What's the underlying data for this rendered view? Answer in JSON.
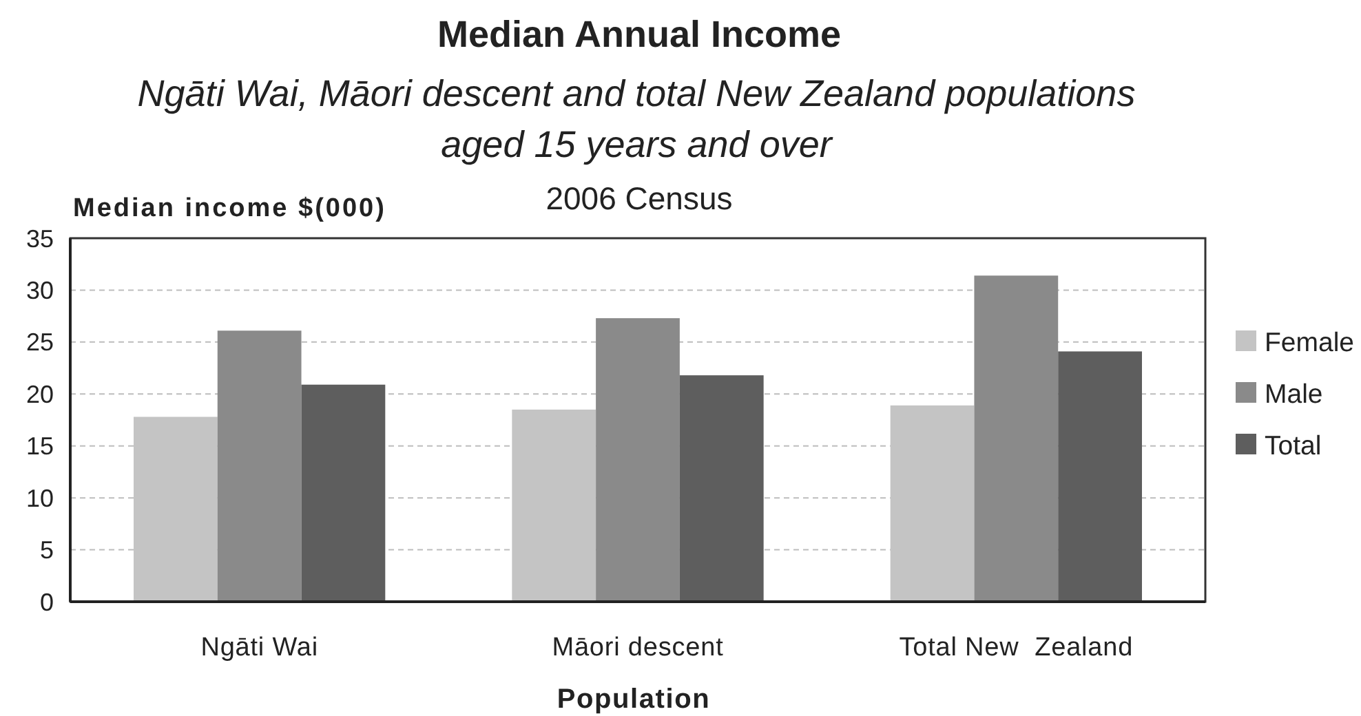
{
  "chart_data": {
    "type": "bar",
    "title": "Median Annual Income",
    "subtitle": "Ngāti Wai, Māori descent and total New Zealand populations\naged 15 years and over",
    "annotations": [
      "2006 Census"
    ],
    "xlabel": "Population",
    "ylabel": "Median income $(000)",
    "categories": [
      "Ngāti Wai",
      "Māori descent",
      "Total New  Zealand"
    ],
    "series": [
      {
        "name": "Female",
        "color": "#c4c4c4",
        "values": [
          17.8,
          18.5,
          18.9
        ]
      },
      {
        "name": "Male",
        "color": "#8a8a8a",
        "values": [
          26.1,
          27.3,
          31.4
        ]
      },
      {
        "name": "Total",
        "color": "#5e5e5e",
        "values": [
          20.9,
          21.8,
          24.1
        ]
      }
    ],
    "ylim": [
      0,
      35
    ],
    "yticks": [
      0,
      5,
      10,
      15,
      20,
      25,
      30,
      35
    ],
    "grid": "y",
    "legend": "right"
  }
}
